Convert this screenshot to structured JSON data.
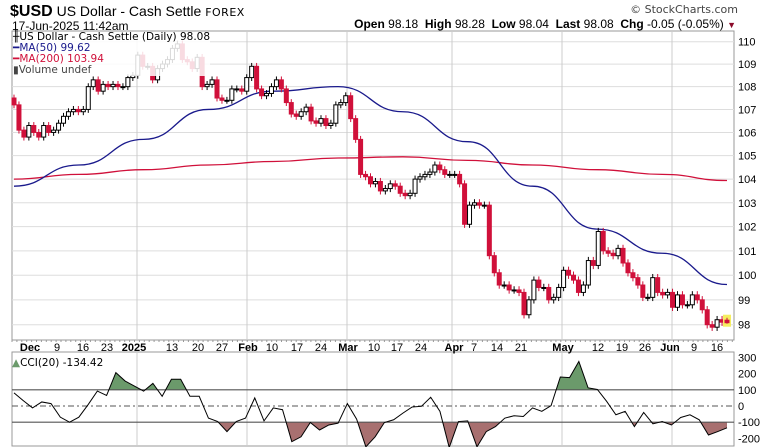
{
  "header": {
    "symbol": "$USD",
    "name": "US Dollar - Cash Settle",
    "exchange": "FOREX",
    "datetime": "17-Jun-2025 11:42am",
    "brand": "© StockCharts.com",
    "open_label": "Open",
    "open": "98.18",
    "high_label": "High",
    "high": "98.28",
    "low_label": "Low",
    "low": "98.04",
    "last_label": "Last",
    "last": "98.08",
    "chg_label": "Chg",
    "chg": "-0.05 (-0.05%)"
  },
  "legend": {
    "price": "US Dollar - Cash Settle (Daily) 98.08",
    "ma50": "MA(50) 99.62",
    "ma200": "MA(200) 103.94",
    "volume": "Volume undef",
    "cci": "CCI(20) -134.42"
  },
  "colors": {
    "up": "#ffffff",
    "down": "#d0103a",
    "ma50": "#1a1a8c",
    "ma200": "#d0103a",
    "cci_pos": "#6b9a6b",
    "cci_neg": "#a87070"
  },
  "chart_data": [
    {
      "type": "candlestick",
      "scale": "log",
      "ylim": [
        97.6,
        110.3
      ],
      "y_ticks": [
        110,
        109,
        108,
        107,
        106,
        105,
        104,
        103,
        102,
        101,
        100,
        99,
        98
      ],
      "x_tick_labels": [
        "Dec",
        "9",
        "16",
        "23",
        "2025",
        "13",
        "20",
        "27",
        "Feb",
        "10",
        "17",
        "24",
        "Mar",
        "10",
        "17",
        "24",
        "Apr",
        "7",
        "14",
        "21",
        "May",
        "12",
        "19",
        "26",
        "Jun",
        "9",
        "16"
      ],
      "close": [
        107.2,
        106.1,
        105.8,
        106.3,
        106.0,
        105.8,
        106.3,
        106.0,
        106.1,
        106.4,
        106.7,
        106.9,
        107.0,
        106.9,
        107.0,
        108.0,
        108.3,
        107.8,
        108.1,
        108.0,
        108.1,
        108.0,
        108.0,
        108.4,
        108.5,
        109.4,
        108.9,
        108.9,
        108.3,
        108.8,
        109.0,
        109.2,
        109.7,
        109.9,
        109.2,
        109.1,
        108.8,
        109.3,
        108.0,
        108.1,
        108.3,
        107.5,
        107.4,
        107.4,
        107.9,
        107.9,
        107.8,
        108.4,
        108.9,
        107.9,
        107.6,
        107.7,
        108.0,
        108.3,
        107.9,
        107.3,
        106.8,
        106.7,
        106.9,
        107.1,
        106.5,
        106.4,
        106.6,
        106.3,
        106.4,
        107.2,
        107.3,
        107.6,
        106.6,
        105.7,
        104.2,
        104.1,
        103.8,
        103.9,
        103.5,
        103.6,
        103.8,
        103.7,
        103.4,
        103.3,
        103.4,
        104.0,
        104.1,
        104.2,
        104.3,
        104.6,
        104.4,
        104.2,
        104.2,
        104.2,
        103.8,
        102.1,
        102.9,
        103.0,
        102.9,
        102.9,
        100.8,
        100.1,
        99.6,
        99.6,
        99.4,
        99.4,
        99.3,
        98.4,
        99.0,
        99.8,
        99.5,
        99.5,
        99.0,
        99.1,
        99.5,
        100.2,
        100.0,
        99.8,
        99.3,
        99.6,
        100.6,
        100.4,
        101.8,
        101.0,
        100.9,
        100.8,
        101.1,
        100.5,
        100.1,
        99.9,
        99.6,
        99.1,
        99.1,
        99.9,
        99.3,
        99.2,
        99.3,
        98.7,
        99.2,
        98.8,
        98.8,
        99.2,
        99.0,
        98.6,
        98.0,
        97.9,
        98.2,
        98.1,
        98.08
      ],
      "last_bar": {
        "open": 98.18,
        "high": 98.28,
        "low": 98.04,
        "close": 98.08
      },
      "series": [
        {
          "name": "MA(50)",
          "values": [
            103.7,
            104.6,
            105.7,
            107.0,
            107.8,
            108.0,
            106.9,
            105.6,
            103.7,
            101.9,
            100.9,
            99.62
          ]
        },
        {
          "name": "MA(200)",
          "values": [
            104.0,
            104.2,
            104.4,
            104.6,
            104.75,
            104.9,
            104.95,
            104.8,
            104.6,
            104.4,
            104.2,
            103.94
          ]
        }
      ]
    },
    {
      "type": "line",
      "name": "CCI(20)",
      "ylim": [
        -230,
        320
      ],
      "y_ticks": [
        300,
        200,
        100,
        0,
        -100,
        -200
      ],
      "reference_lines": [
        100,
        0,
        -100
      ],
      "values": [
        81,
        33,
        -12,
        25,
        15,
        -69,
        -100,
        -69,
        8,
        92,
        65,
        206,
        154,
        123,
        92,
        140,
        60,
        165,
        165,
        60,
        60,
        -75,
        -96,
        -158,
        -96,
        -75,
        50,
        -92,
        -12,
        -23,
        -220,
        -190,
        -102,
        -148,
        -117,
        -106,
        15,
        -81,
        -252,
        -190,
        -102,
        -85,
        -44,
        -6,
        -2,
        54,
        -33,
        -256,
        -96,
        -92,
        -252,
        -158,
        -127,
        -75,
        -60,
        -65,
        -12,
        -33,
        2,
        179,
        175,
        275,
        112,
        102,
        29,
        -54,
        -33,
        -127,
        -40,
        -110,
        -96,
        -117,
        -71,
        -54,
        -85,
        -179,
        -158,
        -134.42
      ]
    }
  ]
}
